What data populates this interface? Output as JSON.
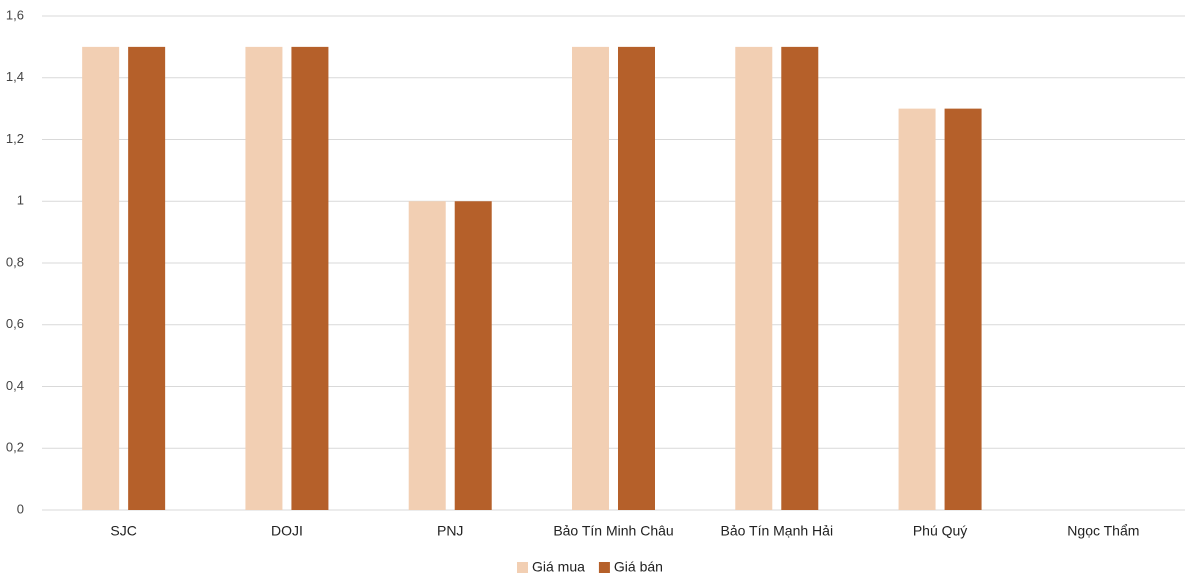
{
  "chart_data": {
    "type": "bar",
    "categories": [
      "SJC",
      "DOJI",
      "PNJ",
      "Bảo Tín Minh Châu",
      "Bảo Tín Mạnh Hải",
      "Phú Quý",
      "Ngọc Thẩm"
    ],
    "series": [
      {
        "name": "Giá mua",
        "color": "#f2cfb3",
        "values": [
          1.5,
          1.5,
          1.0,
          1.5,
          1.5,
          1.3,
          0
        ]
      },
      {
        "name": "Giá bán",
        "color": "#b5602a",
        "values": [
          1.5,
          1.5,
          1.0,
          1.5,
          1.5,
          1.3,
          0
        ]
      }
    ],
    "ylim": [
      0,
      1.6
    ],
    "yticks": [
      0,
      {
        "value": 0.2,
        "label": "0,2"
      },
      {
        "value": 0.4,
        "label": "0,4"
      },
      {
        "value": 0.6,
        "label": "0,6"
      },
      {
        "value": 0.8,
        "label": "0,8"
      },
      1,
      {
        "value": 1.2,
        "label": "1,2"
      },
      {
        "value": 1.4,
        "label": "1,4"
      },
      {
        "value": 1.6,
        "label": "1,6"
      }
    ],
    "grid": true,
    "legend": "bottom"
  }
}
